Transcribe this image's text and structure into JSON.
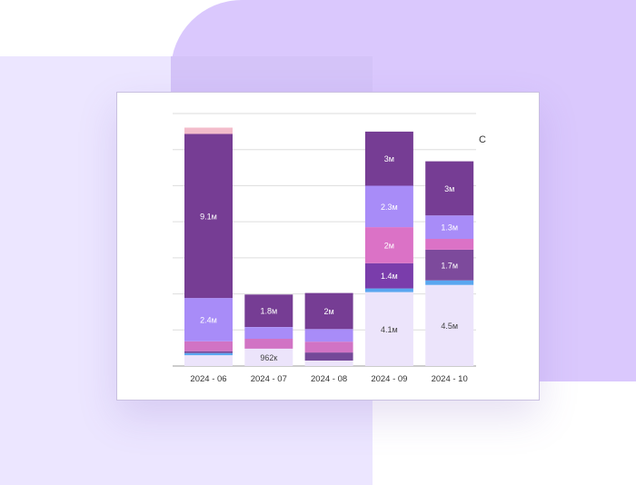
{
  "chart_data": {
    "type": "bar",
    "stacked": true,
    "title": "",
    "xlabel": "",
    "ylabel": "",
    "ylim": [
      0,
      14
    ],
    "grid": true,
    "corner_label": "C",
    "categories": [
      "2024 - 06",
      "2024 - 07",
      "2024 - 08",
      "2024 - 09",
      "2024 - 10"
    ],
    "series": [
      {
        "color": "#ece4fb",
        "values": [
          0.6,
          0.962,
          0.3,
          4.1,
          4.5
        ],
        "labels": [
          "",
          "962к",
          "",
          "4.1м",
          "4.5м"
        ]
      },
      {
        "color": "#5aa7f0",
        "values": [
          0.12,
          0,
          0,
          0.2,
          0.25
        ],
        "labels": [
          "",
          "",
          "",
          "",
          ""
        ]
      },
      {
        "color": "#744898",
        "values": [
          0.1,
          0,
          0.45,
          0,
          0
        ],
        "labels": [
          "",
          "",
          "",
          "",
          ""
        ]
      },
      {
        "color": "#d173c4",
        "values": [
          0.55,
          0.55,
          0.6,
          0,
          0
        ],
        "labels": [
          "",
          "",
          "",
          "",
          ""
        ]
      },
      {
        "color": "#7a3dab",
        "values": [
          0,
          0,
          0,
          1.4,
          0
        ],
        "labels": [
          "",
          "",
          "",
          "1.4м",
          ""
        ]
      },
      {
        "color": "#7d4a9c",
        "values": [
          0,
          0,
          0,
          0,
          1.7
        ],
        "labels": [
          "",
          "",
          "",
          "",
          "1.7м"
        ]
      },
      {
        "color": "#db72c6",
        "values": [
          0,
          0,
          0,
          2.0,
          0.6
        ],
        "labels": [
          "",
          "",
          "",
          "2м",
          ""
        ]
      },
      {
        "color": "#a88cf8",
        "values": [
          2.4,
          0.65,
          0.7,
          2.3,
          1.3
        ],
        "labels": [
          "2.4м",
          "",
          "",
          "2.3м",
          "1.3м"
        ]
      },
      {
        "color": "#763d94",
        "values": [
          9.1,
          1.8,
          2.0,
          3.0,
          3.0
        ],
        "labels": [
          "9.1м",
          "1.8м",
          "2м",
          "3м",
          "3м"
        ]
      },
      {
        "color": "#f3bccb",
        "values": [
          0.35,
          0,
          0,
          0,
          0
        ],
        "labels": [
          "",
          "",
          "",
          "",
          ""
        ]
      }
    ]
  }
}
